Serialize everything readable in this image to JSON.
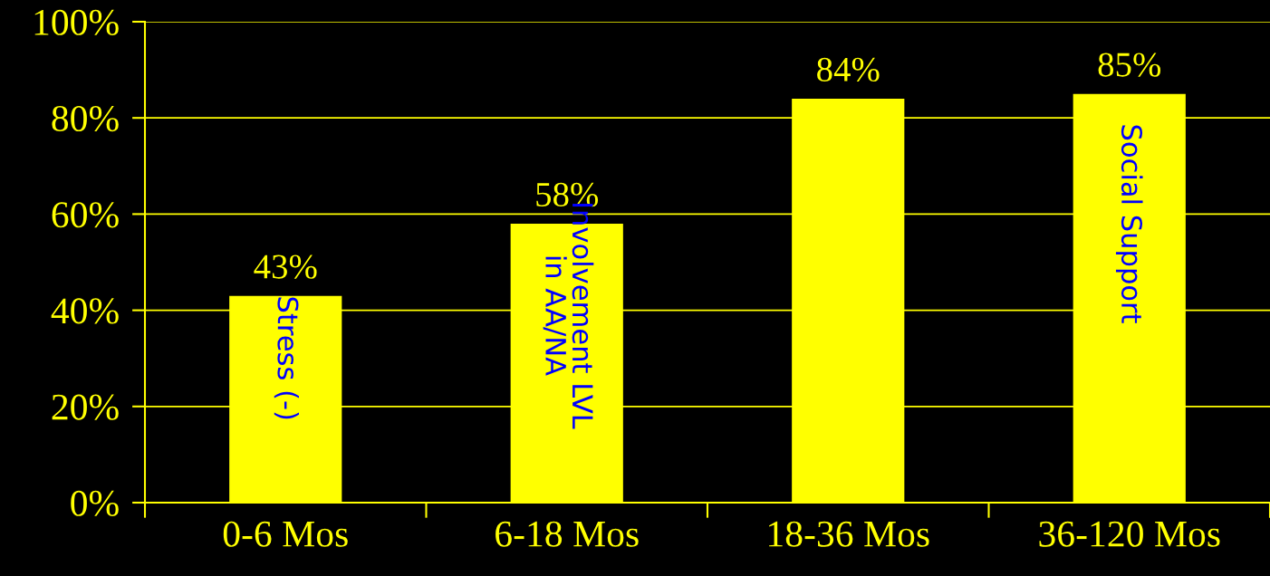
{
  "chart_data": {
    "type": "bar",
    "categories": [
      "0-6 Mos",
      "6-18 Mos",
      "18-36 Mos",
      "36-120 Mos"
    ],
    "values": [
      43,
      58,
      84,
      85
    ],
    "color": "#ffff00",
    "ylim": [
      0,
      100
    ],
    "yticks": [
      {
        "value": 0,
        "label": "0%"
      },
      {
        "value": 20,
        "label": "20%"
      },
      {
        "value": 40,
        "label": "40%"
      },
      {
        "value": 60,
        "label": "60%"
      },
      {
        "value": 80,
        "label": "80%"
      },
      {
        "value": 100,
        "label": "100%"
      }
    ],
    "value_labels": [
      "43%",
      "58%",
      "84%",
      "85%"
    ],
    "grid": "y",
    "annotations": [
      "Stress (-)",
      "Involvement LVL\nin AA/NA",
      "Social Support"
    ]
  }
}
